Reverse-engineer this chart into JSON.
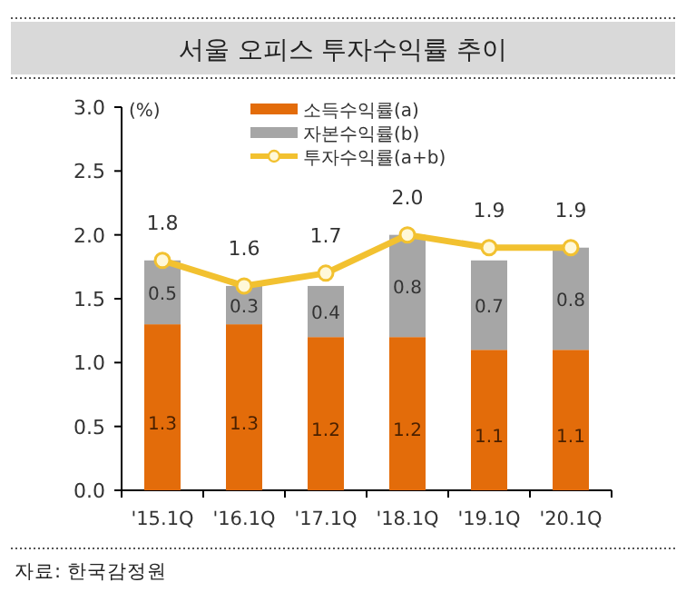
{
  "chart_data": {
    "type": "bar",
    "title": "서울 오피스 투자수익률 추이",
    "ylabel": "(%)",
    "stacked": true,
    "categories": [
      "'15.1Q",
      "'16.1Q",
      "'17.1Q",
      "'18.1Q",
      "'19.1Q",
      "'20.1Q"
    ],
    "series": [
      {
        "name": "소득수익률(a)",
        "color": "#e36c0a",
        "values": [
          1.3,
          1.3,
          1.2,
          1.2,
          1.1,
          1.1
        ]
      },
      {
        "name": "자본수익률(b)",
        "color": "#a6a6a6",
        "values": [
          0.5,
          0.3,
          0.4,
          0.8,
          0.7,
          0.8
        ]
      },
      {
        "name": "투자수익률(a+b)",
        "type": "line",
        "marker": "circle",
        "color": "#f2c130",
        "values": [
          1.8,
          1.6,
          1.7,
          2.0,
          1.9,
          1.9
        ],
        "value_labels": [
          "1.8",
          "1.6",
          "1.7",
          "2.0",
          "1.9",
          "1.9"
        ]
      }
    ],
    "ylim": [
      0,
      3.0
    ],
    "yticks": [
      {
        "value": 0,
        "label": "0.0"
      },
      {
        "value": 0.5,
        "label": "0.5"
      },
      {
        "value": 1,
        "label": "1.0"
      },
      {
        "value": 1.5,
        "label": "1.5"
      },
      {
        "value": 2,
        "label": "2.0"
      },
      {
        "value": 2.5,
        "label": "2.5"
      },
      {
        "value": 3,
        "label": "3.0"
      }
    ],
    "data_labels": true,
    "legend": "top",
    "grid": false,
    "annotations": [
      "자료: 한국감정원"
    ]
  }
}
